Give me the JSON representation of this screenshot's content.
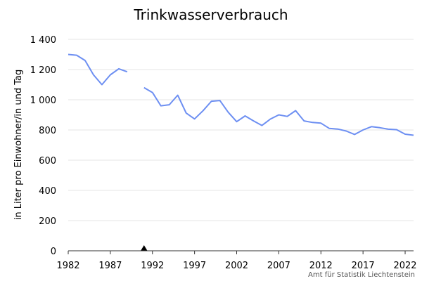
{
  "chart_data": {
    "type": "line",
    "title": "Trinkwasserverbrauch",
    "ylabel": "in Liter pro Einwohner/in und Tag",
    "xlabel": "",
    "xlim": [
      1982,
      2023
    ],
    "ylim": [
      0,
      1400
    ],
    "y_ticks": [
      0,
      200,
      400,
      600,
      800,
      1000,
      1200,
      1400
    ],
    "y_tick_labels": [
      "0",
      "200",
      "400",
      "600",
      "800",
      "1 000",
      "1 200",
      "1 400"
    ],
    "x_ticks": [
      1982,
      1987,
      1992,
      1997,
      2002,
      2007,
      2012,
      2017,
      2022
    ],
    "x_tick_labels": [
      "1982",
      "1987",
      "1992",
      "1997",
      "2002",
      "2007",
      "2012",
      "2017",
      "2022"
    ],
    "grid": true,
    "series_color": "#6d8ff2",
    "marker": {
      "x": 1991,
      "symbol": "▲"
    },
    "series": [
      {
        "segments": [
          {
            "x": [
              1982,
              1983,
              1984,
              1985,
              1986,
              1987,
              1988,
              1989
            ],
            "y": [
              1300,
              1295,
              1260,
              1165,
              1100,
              1165,
              1205,
              1185
            ]
          },
          {
            "x": [
              1991,
              1992,
              1993,
              1994,
              1995,
              1996,
              1997,
              1998,
              1999,
              2000,
              2001,
              2002,
              2003,
              2004,
              2005,
              2006,
              2007,
              2008,
              2009,
              2010,
              2011,
              2012,
              2013,
              2014,
              2015,
              2016,
              2017,
              2018,
              2019,
              2020,
              2021,
              2022,
              2023
            ],
            "y": [
              1080,
              1048,
              960,
              967,
              1030,
              912,
              873,
              927,
              990,
              995,
              917,
              855,
              893,
              860,
              830,
              872,
              900,
              890,
              928,
              860,
              850,
              845,
              810,
              806,
              793,
              770,
              800,
              822,
              815,
              805,
              802,
              772,
              765
            ]
          }
        ]
      }
    ]
  },
  "source": "Amt für Statistik Liechtenstein"
}
